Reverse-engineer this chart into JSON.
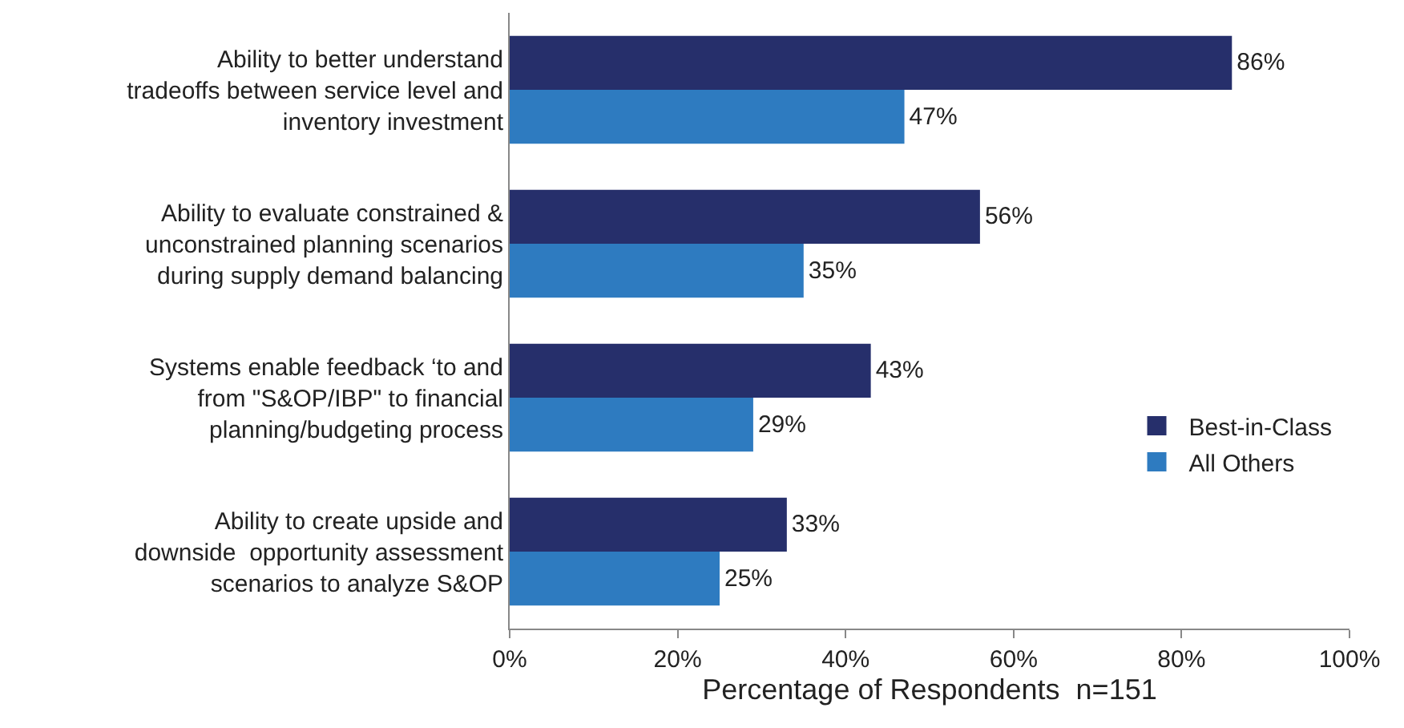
{
  "chart_data": {
    "type": "bar",
    "orientation": "horizontal",
    "xlabel": "Percentage of Respondents  n=151",
    "categories": [
      "Ability to better understand\ntradeoffs between service level and\ninventory investment",
      "Ability to evaluate constrained &\nunconstrained planning scenarios\nduring supply demand balancing",
      "Systems enable feedback ‘to and\nfrom \"S&OP/IBP\" to financial\nplanning/budgeting process",
      "Ability to create upside and\ndownside  opportunity assessment\nscenarios to analyze S&OP"
    ],
    "series": [
      {
        "name": "Best-in-Class",
        "color": "#262f6b",
        "values": [
          86,
          56,
          43,
          33
        ],
        "value_labels": [
          "86%",
          "56%",
          "43%",
          "33%"
        ]
      },
      {
        "name": "All Others",
        "color": "#2e7bc0",
        "values": [
          47,
          35,
          29,
          25
        ],
        "value_labels": [
          "47%",
          "35%",
          "29%",
          "25%"
        ]
      }
    ],
    "xlim": [
      0,
      100
    ],
    "xticks": [
      {
        "value": 0,
        "label": "0%"
      },
      {
        "value": 20,
        "label": "20%"
      },
      {
        "value": 40,
        "label": "40%"
      },
      {
        "value": 60,
        "label": "60%"
      },
      {
        "value": 80,
        "label": "80%"
      },
      {
        "value": 100,
        "label": "100%"
      }
    ],
    "grid": false,
    "legend": "right"
  }
}
